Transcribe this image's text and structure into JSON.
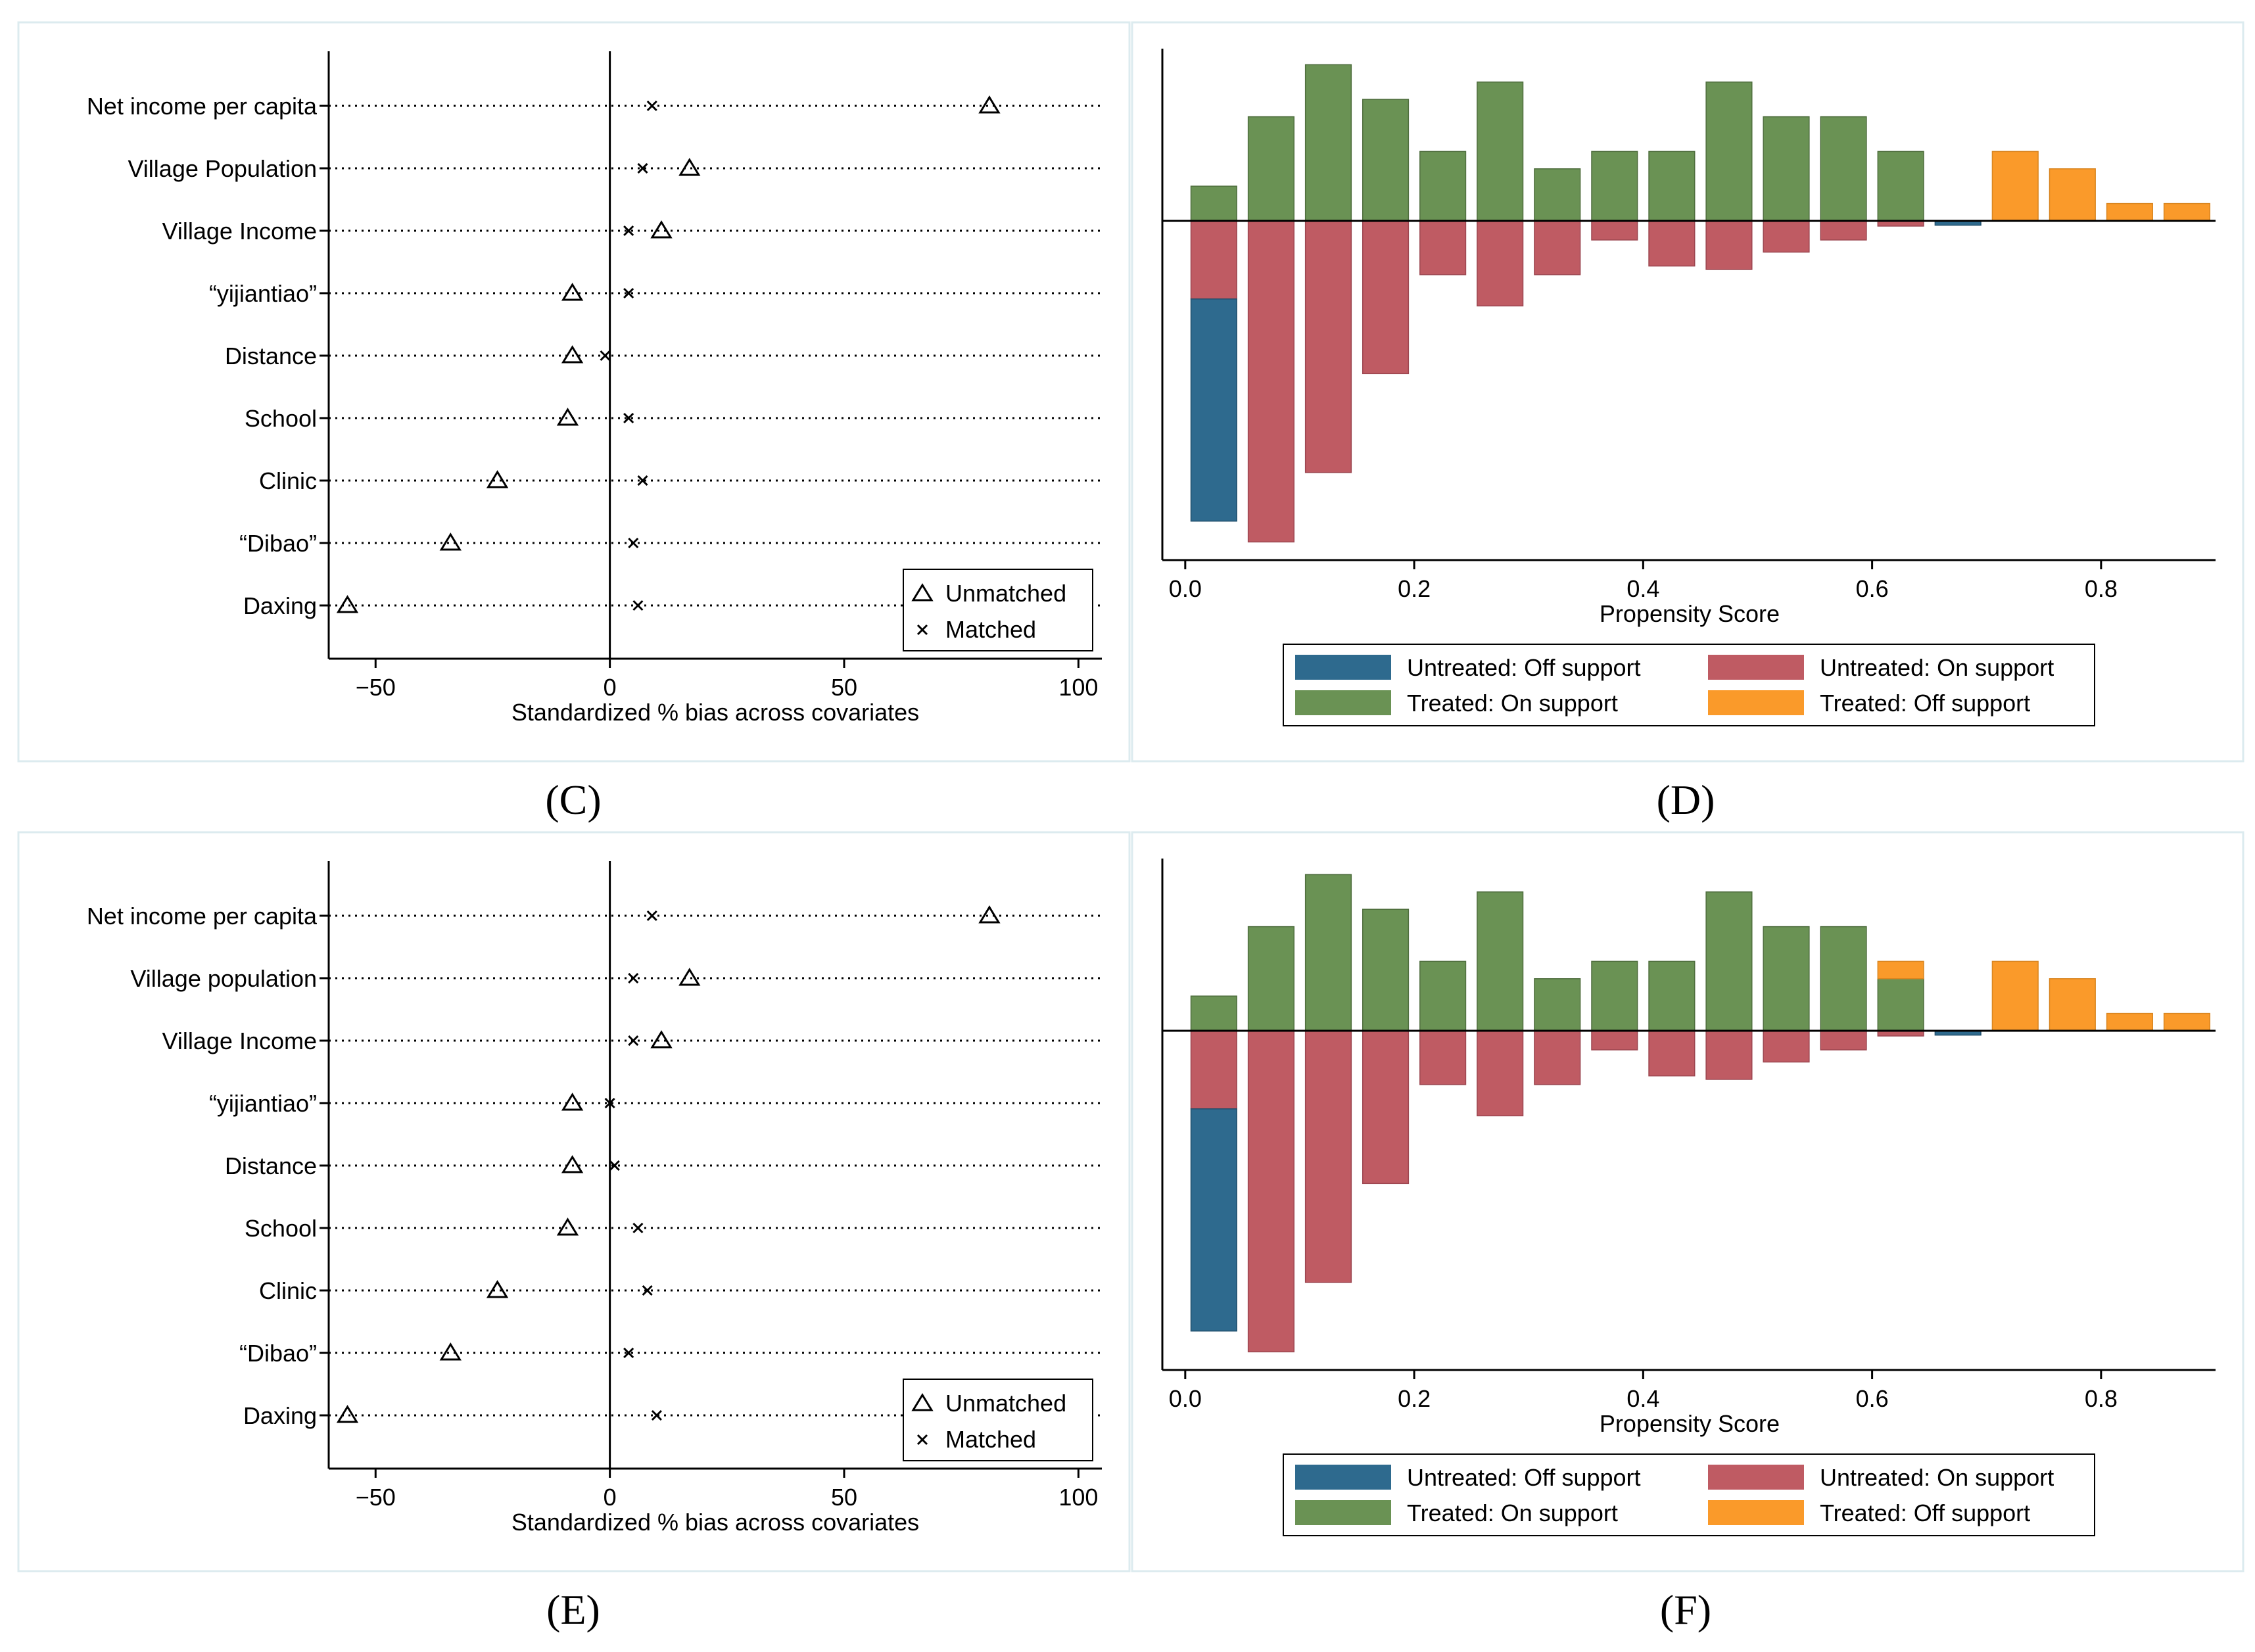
{
  "colors": {
    "untreated_off": "#2e6a8e",
    "untreated_on": "#bf5b63",
    "treated_on": "#6a9254",
    "treated_off": "#fa9a2a",
    "panel_border": "#dcebef"
  },
  "chart_data": [
    {
      "panel": "C",
      "label": "(C)",
      "type": "scatter",
      "xlabel": "Standardized % bias across covariates",
      "xlim": [
        -60,
        105
      ],
      "xticks": [
        -50,
        0,
        50,
        100
      ],
      "xtick_labels": [
        "−50",
        "0",
        "50",
        "100"
      ],
      "reference_line": 0,
      "legend": {
        "position": "bottom-right",
        "unmatched": "Unmatched",
        "matched": "Matched"
      },
      "covariates": [
        "Net income per capita",
        "Village Population",
        "Village Income",
        "“yijiantiao”",
        "Distance",
        "School",
        "Clinic",
        "“Dibao”",
        "Daxing"
      ],
      "unmatched": [
        81,
        17,
        11,
        -8,
        -8,
        -9,
        -24,
        -34,
        -56
      ],
      "matched": [
        9,
        7,
        4,
        4,
        -1,
        4,
        7,
        5,
        6
      ]
    },
    {
      "panel": "D",
      "label": "(D)",
      "type": "bar",
      "xlabel": "Propensity Score",
      "xlim": [
        -0.02,
        0.9
      ],
      "xticks": [
        0.0,
        0.2,
        0.4,
        0.6,
        0.8
      ],
      "xtick_labels": [
        "0.0",
        "0.2",
        "0.4",
        "0.6",
        "0.8"
      ],
      "bin_centers": [
        0.025,
        0.075,
        0.125,
        0.175,
        0.225,
        0.275,
        0.325,
        0.375,
        0.425,
        0.475,
        0.525,
        0.575,
        0.625,
        0.675,
        0.725,
        0.775,
        0.825,
        0.875
      ],
      "bin_width": 0.04,
      "treated_on": [
        2,
        6,
        9,
        7,
        4,
        8,
        3,
        4,
        4,
        8,
        6,
        6,
        4,
        0,
        0,
        0,
        0,
        0
      ],
      "treated_off": [
        0,
        0,
        0,
        0,
        0,
        0,
        0,
        0,
        0,
        0,
        0,
        0,
        0,
        0,
        4,
        3,
        1,
        1
      ],
      "untreated_on": [
        4.5,
        18.5,
        14.5,
        8.8,
        3.1,
        4.9,
        3.1,
        1.1,
        2.6,
        2.8,
        1.8,
        1.1,
        0.3,
        0,
        0,
        0,
        0,
        0
      ],
      "untreated_off": [
        12.8,
        0,
        0,
        0,
        0,
        0,
        0,
        0,
        0,
        0,
        0,
        0,
        0,
        0.25,
        0,
        0,
        0,
        0
      ],
      "legend": {
        "position": "bottom",
        "items": [
          "Untreated: Off support",
          "Untreated: On support",
          "Treated: On support",
          "Treated: Off support"
        ]
      }
    },
    {
      "panel": "E",
      "label": "(E)",
      "type": "scatter",
      "xlabel": "Standardized % bias across covariates",
      "xlim": [
        -60,
        105
      ],
      "xticks": [
        -50,
        0,
        50,
        100
      ],
      "xtick_labels": [
        "−50",
        "0",
        "50",
        "100"
      ],
      "reference_line": 0,
      "legend": {
        "position": "bottom-right",
        "unmatched": "Unmatched",
        "matched": "Matched"
      },
      "covariates": [
        "Net income per capita",
        "Village population",
        "Village Income",
        "“yijiantiao”",
        "Distance",
        "School",
        "Clinic",
        "“Dibao”",
        "Daxing"
      ],
      "unmatched": [
        81,
        17,
        11,
        -8,
        -8,
        -9,
        -24,
        -34,
        -56
      ],
      "matched": [
        9,
        5,
        5,
        0,
        1,
        6,
        8,
        4,
        10
      ]
    },
    {
      "panel": "F",
      "label": "(F)",
      "type": "bar",
      "xlabel": "Propensity Score",
      "xlim": [
        -0.02,
        0.9
      ],
      "xticks": [
        0.0,
        0.2,
        0.4,
        0.6,
        0.8
      ],
      "xtick_labels": [
        "0.0",
        "0.2",
        "0.4",
        "0.6",
        "0.8"
      ],
      "bin_centers": [
        0.025,
        0.075,
        0.125,
        0.175,
        0.225,
        0.275,
        0.325,
        0.375,
        0.425,
        0.475,
        0.525,
        0.575,
        0.625,
        0.675,
        0.725,
        0.775,
        0.825,
        0.875
      ],
      "bin_width": 0.04,
      "treated_on": [
        2,
        6,
        9,
        7,
        4,
        8,
        3,
        4,
        4,
        8,
        6,
        6,
        3,
        0,
        0,
        0,
        0,
        0
      ],
      "treated_off": [
        0,
        0,
        0,
        0,
        0,
        0,
        0,
        0,
        0,
        0,
        0,
        0,
        1,
        0,
        4,
        3,
        1,
        1
      ],
      "untreated_on": [
        4.5,
        18.5,
        14.5,
        8.8,
        3.1,
        4.9,
        3.1,
        1.1,
        2.6,
        2.8,
        1.8,
        1.1,
        0.3,
        0,
        0,
        0,
        0,
        0
      ],
      "untreated_off": [
        12.8,
        0,
        0,
        0,
        0,
        0,
        0,
        0,
        0,
        0,
        0,
        0,
        0,
        0.25,
        0,
        0,
        0,
        0
      ],
      "legend": {
        "position": "bottom",
        "items": [
          "Untreated: Off support",
          "Untreated: On support",
          "Treated: On support",
          "Treated: Off support"
        ]
      }
    }
  ]
}
